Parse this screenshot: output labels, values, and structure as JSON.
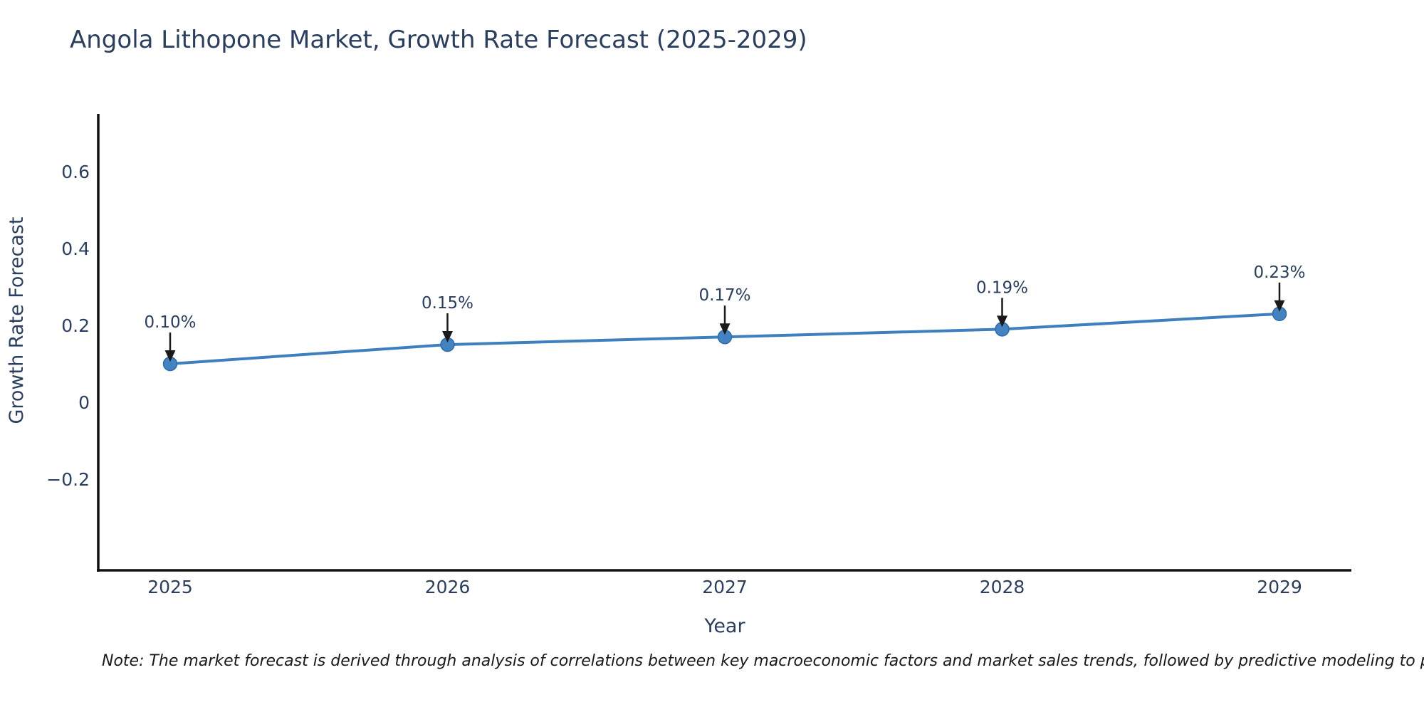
{
  "page": {
    "title": "Angola Lithopone Market, Growth Rate Forecast (2025-2029)",
    "note": "Note: The market forecast is derived through analysis of correlations between key macroeconomic factors and market sales trends, followed by predictive modeling to project future sa"
  },
  "colors": {
    "background": "#ffffff",
    "title_text": "#2a3f5f",
    "tick_text": "#2a3f5f",
    "axis_title_text": "#2a3f5f",
    "annotation_text": "#2a3f5f",
    "axis_line": "#111111",
    "series_line": "#3e7fbd",
    "marker_fill": "#4383c1",
    "marker_edge": "#2e6da9",
    "arrow": "#1a1a1a",
    "note_text": "#1a1a1a"
  },
  "chart_data": {
    "type": "line",
    "title": "Angola Lithopone Market, Growth Rate Forecast (2025-2029)",
    "xlabel": "Year",
    "ylabel": "Growth Rate Forecast",
    "categories": [
      2025,
      2026,
      2027,
      2028,
      2029
    ],
    "series": [
      {
        "name": "Growth Rate Forecast",
        "values": [
          0.1,
          0.15,
          0.17,
          0.19,
          0.23
        ]
      }
    ],
    "point_labels": [
      "0.10%",
      "0.15%",
      "0.17%",
      "0.19%",
      "0.23%"
    ],
    "yticks": [
      0.6,
      0.4,
      0.2,
      0,
      -0.2
    ],
    "ytick_labels": [
      "0.6",
      "0.4",
      "0.2",
      "0",
      "−0.2"
    ],
    "xtick_labels": [
      "2025",
      "2026",
      "2027",
      "2028",
      "2029"
    ],
    "ylim": [
      -0.44,
      0.75
    ],
    "grid": false,
    "legend": "none",
    "marker_style": "circle",
    "annotation_arrows": true
  }
}
